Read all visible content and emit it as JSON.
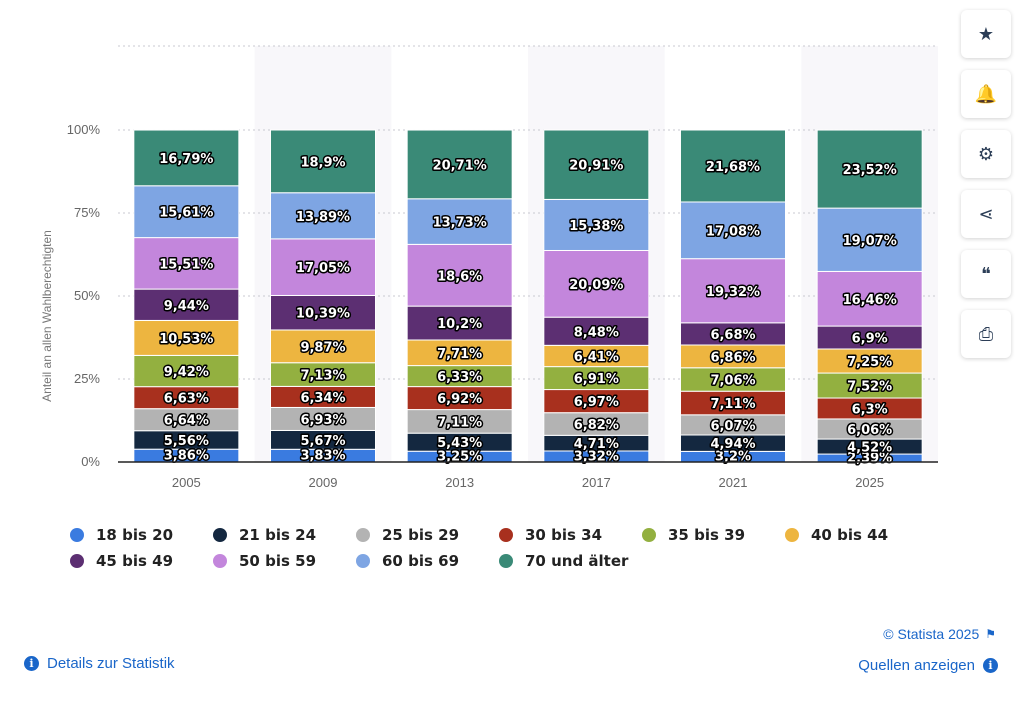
{
  "chart_data": {
    "type": "bar",
    "stacked": true,
    "percent": true,
    "ylabel": "Anteil an allen Wahlberechtigten",
    "ylim": [
      0,
      100
    ],
    "yticks": [
      "0%",
      "25%",
      "50%",
      "75%",
      "100%"
    ],
    "grid": true,
    "legend_position": "bottom",
    "categories": [
      "2005",
      "2009",
      "2013",
      "2017",
      "2021",
      "2025"
    ],
    "series": [
      {
        "name": "18 bis 20",
        "color": "#3a7be0",
        "values": [
          3.86,
          3.83,
          3.25,
          3.32,
          3.2,
          2.39
        ],
        "labels": [
          "3,86%",
          "3,83%",
          "3,25%",
          "3,32%",
          "3,2%",
          "2,39%"
        ]
      },
      {
        "name": "21 bis 24",
        "color": "#142840",
        "values": [
          5.56,
          5.67,
          5.43,
          4.71,
          4.94,
          4.52
        ],
        "labels": [
          "5,56%",
          "5,67%",
          "5,43%",
          "4,71%",
          "4,94%",
          "4,52%"
        ]
      },
      {
        "name": "25 bis 29",
        "color": "#b3b3b3",
        "values": [
          6.64,
          6.93,
          7.11,
          6.82,
          6.07,
          6.06
        ],
        "labels": [
          "6,64%",
          "6,93%",
          "7,11%",
          "6,82%",
          "6,07%",
          "6,06%"
        ]
      },
      {
        "name": "30 bis 34",
        "color": "#a8301e",
        "values": [
          6.63,
          6.34,
          6.92,
          6.97,
          7.11,
          6.3
        ],
        "labels": [
          "6,63%",
          "6,34%",
          "6,92%",
          "6,97%",
          "7,11%",
          "6,3%"
        ]
      },
      {
        "name": "35 bis 39",
        "color": "#93b040",
        "values": [
          9.42,
          7.13,
          6.33,
          6.91,
          7.06,
          7.52
        ],
        "labels": [
          "9,42%",
          "7,13%",
          "6,33%",
          "6,91%",
          "7,06%",
          "7,52%"
        ]
      },
      {
        "name": "40 bis 44",
        "color": "#edb540",
        "values": [
          10.53,
          9.87,
          7.71,
          6.41,
          6.86,
          7.25
        ],
        "labels": [
          "10,53%",
          "9,87%",
          "7,71%",
          "6,41%",
          "6,86%",
          "7,25%"
        ]
      },
      {
        "name": "45 bis 49",
        "color": "#5c2f72",
        "values": [
          9.44,
          10.39,
          10.2,
          8.48,
          6.68,
          6.9
        ],
        "labels": [
          "9,44%",
          "10,39%",
          "10,2%",
          "8,48%",
          "6,68%",
          "6,9%"
        ]
      },
      {
        "name": "50 bis 59",
        "color": "#c386dc",
        "values": [
          15.51,
          17.05,
          18.6,
          20.09,
          19.32,
          16.46
        ],
        "labels": [
          "15,51%",
          "17,05%",
          "18,6%",
          "20,09%",
          "19,32%",
          "16,46%"
        ]
      },
      {
        "name": "60 bis 69",
        "color": "#7ea5e3",
        "values": [
          15.61,
          13.89,
          13.73,
          15.38,
          17.08,
          19.07
        ],
        "labels": [
          "15,61%",
          "13,89%",
          "13,73%",
          "15,38%",
          "17,08%",
          "19,07%"
        ]
      },
      {
        "name": "70 und älter",
        "color": "#3a8a77",
        "values": [
          16.79,
          18.9,
          20.71,
          20.91,
          21.68,
          23.52
        ],
        "labels": [
          "16,79%",
          "18,9%",
          "20,71%",
          "20,91%",
          "21,68%",
          "23,52%"
        ]
      }
    ]
  },
  "sidebar": {
    "buttons": [
      {
        "name": "star-icon",
        "glyph": "★"
      },
      {
        "name": "bell-icon",
        "glyph": "🔔"
      },
      {
        "name": "gear-icon",
        "glyph": "⚙"
      },
      {
        "name": "share-icon",
        "glyph": "⋖"
      },
      {
        "name": "quote-icon",
        "glyph": "❝"
      },
      {
        "name": "print-icon",
        "glyph": "⎙"
      }
    ]
  },
  "footer": {
    "copyright": "© Statista 2025",
    "details_link": "Details zur Statistik",
    "sources_link": "Quellen anzeigen"
  }
}
